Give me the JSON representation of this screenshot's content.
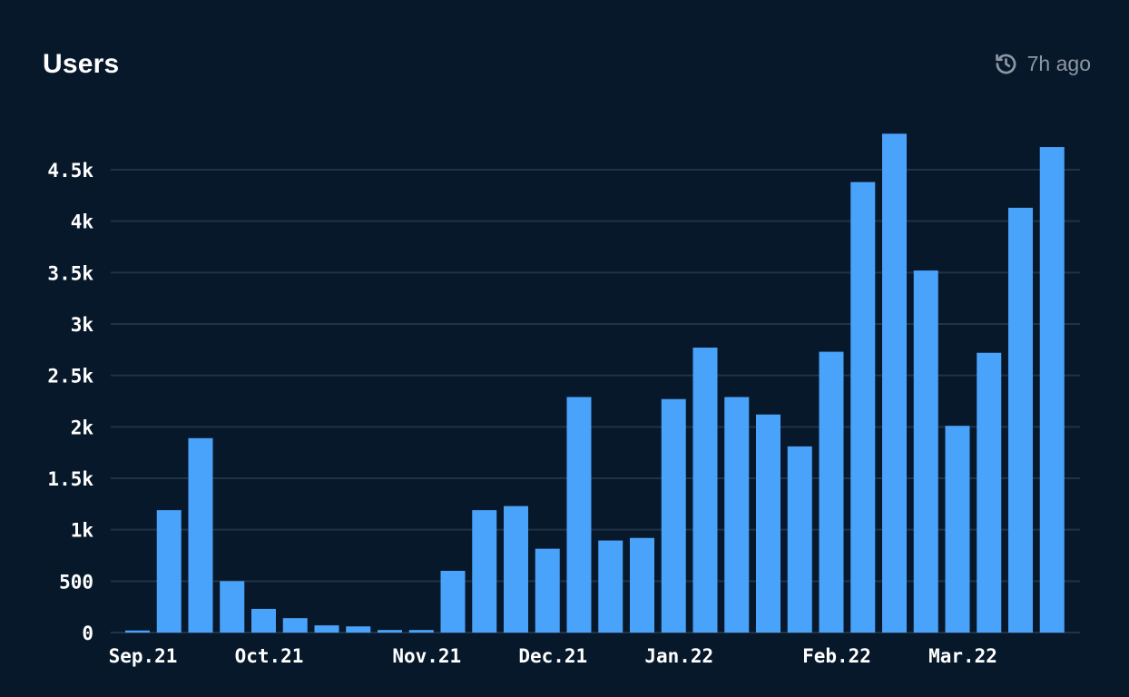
{
  "card": {
    "title": "Users",
    "updated_label": "7h ago",
    "updated_icon": "history-clock-icon"
  },
  "colors": {
    "background": "#07182b",
    "bar": "#4aa3fb",
    "grid": "#1f3347",
    "muted": "#8d97a3"
  },
  "chart_data": {
    "type": "bar",
    "title": "Users",
    "xlabel": "",
    "ylabel": "",
    "ylim": [
      0,
      4900
    ],
    "grid": true,
    "y_ticks": [
      0,
      500,
      1000,
      1500,
      2000,
      2500,
      3000,
      3500,
      4000,
      4500
    ],
    "y_tick_labels": [
      "0",
      "500",
      "1k",
      "1.5k",
      "2k",
      "2.5k",
      "3k",
      "3.5k",
      "4k",
      "4.5k"
    ],
    "x_tick_labels": [
      {
        "label": "Sep.21",
        "bar_index": 0
      },
      {
        "label": "Oct.21",
        "bar_index": 4
      },
      {
        "label": "Nov.21",
        "bar_index": 9
      },
      {
        "label": "Dec.21",
        "bar_index": 13
      },
      {
        "label": "Jan.22",
        "bar_index": 17
      },
      {
        "label": "Feb.22",
        "bar_index": 22
      },
      {
        "label": "Mar.22",
        "bar_index": 26
      }
    ],
    "values": [
      20,
      1190,
      1890,
      500,
      230,
      140,
      70,
      60,
      25,
      25,
      600,
      1190,
      1230,
      815,
      2290,
      895,
      920,
      2270,
      2770,
      2290,
      2120,
      1810,
      2730,
      4380,
      4850,
      3520,
      2010,
      2720,
      4130,
      4720
    ]
  }
}
